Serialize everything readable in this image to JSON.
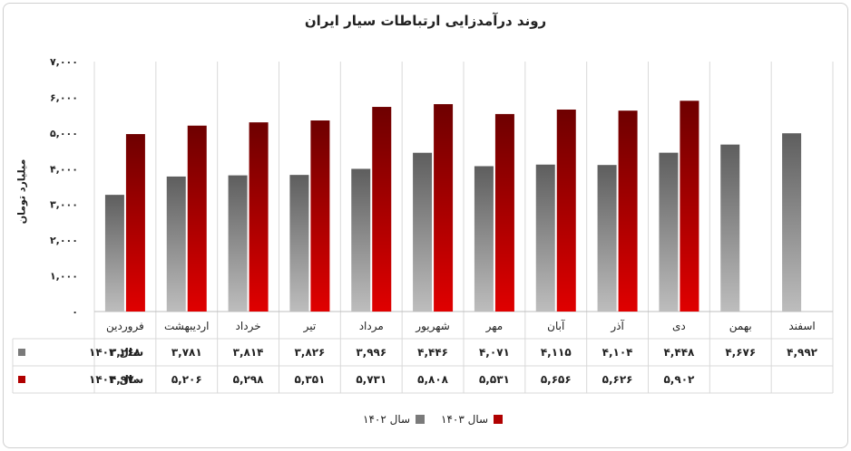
{
  "chart_data": {
    "type": "bar",
    "title": "روند درآمدزایی ارتباطات سیار ایران",
    "ylabel": "میلیارد تومان",
    "ylim": [
      0,
      7000
    ],
    "yticks": [
      "۰",
      "۱,۰۰۰",
      "۲,۰۰۰",
      "۳,۰۰۰",
      "۴,۰۰۰",
      "۵,۰۰۰",
      "۶,۰۰۰",
      "۷,۰۰۰"
    ],
    "grid": true,
    "legend_position": "bottom",
    "categories": [
      "فروردین",
      "اردیبهشت",
      "خرداد",
      "تیر",
      "مرداد",
      "شهریور",
      "مهر",
      "آبان",
      "آذر",
      "دی",
      "بهمن",
      "اسفند"
    ],
    "series": [
      {
        "name": "سال ۱۴۰۲",
        "color": "#7a7a7a",
        "values": [
          3268,
          3781,
          3814,
          3826,
          3996,
          4446,
          4071,
          4115,
          4104,
          4448,
          4676,
          4992
        ],
        "labels": [
          "۳,۲۶۸",
          "۳,۷۸۱",
          "۳,۸۱۴",
          "۳,۸۲۶",
          "۳,۹۹۶",
          "۴,۴۴۶",
          "۴,۰۷۱",
          "۴,۱۱۵",
          "۴,۱۰۴",
          "۴,۴۴۸",
          "۴,۶۷۶",
          "۴,۹۹۲"
        ]
      },
      {
        "name": "سال ۱۴۰۳",
        "color": "#b00000",
        "values": [
          4970,
          5206,
          5298,
          5351,
          5731,
          5808,
          5531,
          5656,
          5626,
          5902,
          null,
          null
        ],
        "labels": [
          "۴,۹۷۰",
          "۵,۲۰۶",
          "۵,۲۹۸",
          "۵,۳۵۱",
          "۵,۷۳۱",
          "۵,۸۰۸",
          "۵,۵۳۱",
          "۵,۶۵۶",
          "۵,۶۲۶",
          "۵,۹۰۲",
          "",
          ""
        ]
      }
    ]
  }
}
